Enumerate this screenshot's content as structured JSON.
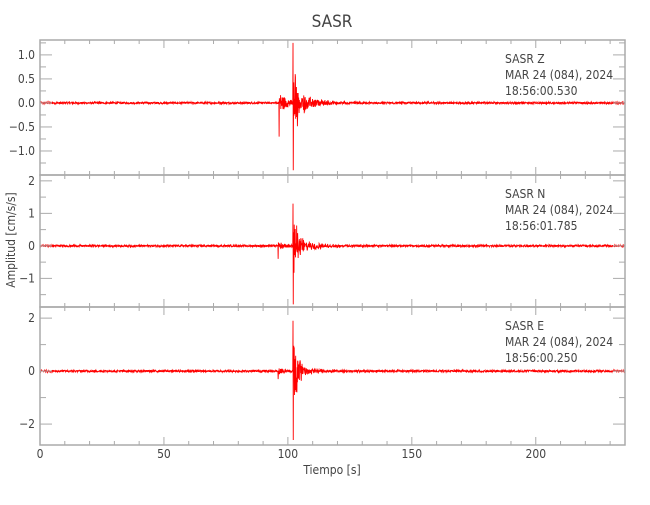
{
  "chart_data": {
    "type": "line",
    "title": "SASR",
    "xlabel": "Tiempo [s]",
    "ylabel": "Amplitud [cm/s/s]",
    "xlim": [
      0,
      236
    ],
    "xticks": [
      0,
      50,
      100,
      150,
      200
    ],
    "line_color": "#ff0000",
    "grid": false,
    "panels": [
      {
        "station": "SASR",
        "component": "Z",
        "date": "MAR 24 (084), 2024",
        "time": "18:56:00.530",
        "ylim": [
          -1.5,
          1.31
        ],
        "yticks": [
          1.0,
          0.5,
          0.0,
          -0.5,
          -1.0
        ],
        "ytick_labels": [
          "1.0",
          "0.5",
          "0.0",
          "-0.5",
          "-1.0"
        ],
        "noise_amplitude": 0.02,
        "p_arrival": {
          "t": 96.4,
          "max": 0.35,
          "min": -0.7
        },
        "s_arrival": {
          "t": 102,
          "max": 1.25,
          "min": -1.4
        },
        "coda_decay_s": 8
      },
      {
        "station": "SASR",
        "component": "N",
        "date": "MAR 24 (084), 2024",
        "time": "18:56:01.785",
        "ylim": [
          -1.88,
          2.18
        ],
        "yticks": [
          2,
          1,
          0,
          -1
        ],
        "ytick_labels": [
          "2",
          "1",
          "0",
          "-1"
        ],
        "noise_amplitude": 0.03,
        "p_arrival": {
          "t": 96.0,
          "max": 0.2,
          "min": -0.4
        },
        "s_arrival": {
          "t": 102,
          "max": 1.3,
          "min": -1.8
        },
        "coda_decay_s": 8
      },
      {
        "station": "SASR",
        "component": "E",
        "date": "MAR 24 (084), 2024",
        "time": "18:56:00.250",
        "ylim": [
          -2.79,
          2.42
        ],
        "yticks": [
          2,
          0,
          -2
        ],
        "ytick_labels": [
          "2",
          "0",
          "-2"
        ],
        "noise_amplitude": 0.04,
        "p_arrival": {
          "t": 96.0,
          "max": 0.3,
          "min": -0.3
        },
        "s_arrival": {
          "t": 102,
          "max": 1.9,
          "min": -2.6
        },
        "coda_decay_s": 8
      }
    ]
  }
}
